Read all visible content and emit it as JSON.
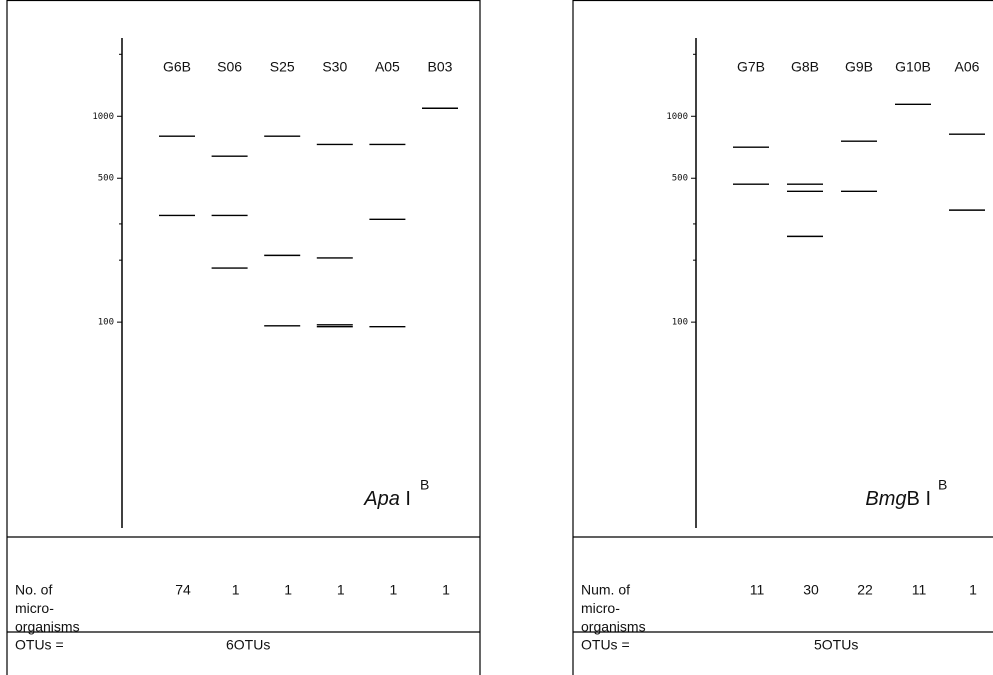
{
  "panels": [
    {
      "lanes": [
        {
          "name": "G6B",
          "count": 74,
          "bands": [
            800,
            330
          ]
        },
        {
          "name": "S06",
          "count": 1,
          "bands": [
            640,
            330,
            183
          ]
        },
        {
          "name": "S25",
          "count": 1,
          "bands": [
            800,
            211,
            96
          ]
        },
        {
          "name": "S30",
          "count": 1,
          "bands": [
            730,
            205,
            97,
            95
          ]
        },
        {
          "name": "A05",
          "count": 1,
          "bands": [
            730,
            316,
            95
          ]
        },
        {
          "name": "B03",
          "count": 1,
          "bands": [
            1094
          ]
        }
      ],
      "ylim": [
        10,
        2400
      ],
      "log_scale": true,
      "yticks": [
        1000,
        500,
        100
      ],
      "minor_ticks": [
        200,
        300,
        2000
      ],
      "enzyme": {
        "italic": "Apa",
        "rest": " I",
        "superscript": "B"
      },
      "count_label": [
        "No. of",
        "micro-",
        "organisms"
      ],
      "otu_label": "OTUs =",
      "otu_value": "6OTUs"
    },
    {
      "lanes": [
        {
          "name": "G7B",
          "count": 11,
          "bands": [
            708,
            468
          ]
        },
        {
          "name": "G8B",
          "count": 30,
          "bands": [
            468,
            432,
            261
          ]
        },
        {
          "name": "G9B",
          "count": 22,
          "bands": [
            757,
            432
          ]
        },
        {
          "name": "G10B",
          "count": 11,
          "bands": [
            1143
          ]
        },
        {
          "name": "A06",
          "count": 1,
          "bands": [
            818,
            350
          ]
        }
      ],
      "ylim": [
        10,
        2400
      ],
      "log_scale": true,
      "yticks": [
        1000,
        500,
        100
      ],
      "minor_ticks": [
        200,
        300,
        2000
      ],
      "enzyme": {
        "italic": "Bmg",
        "rest": "B I",
        "superscript": "B"
      },
      "count_label": [
        "Num. of",
        "micro-",
        "organisms"
      ],
      "otu_label": "OTUs =",
      "otu_value": "5OTUs"
    }
  ]
}
